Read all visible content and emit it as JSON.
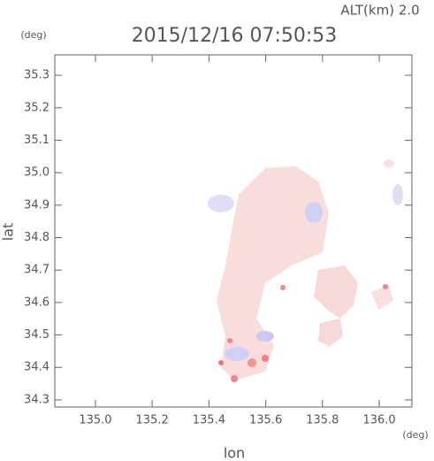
{
  "chart_data": {
    "type": "map",
    "title": "2015/12/16 07:50:53",
    "altitude_label": "ALT(km) 2.0",
    "y_unit": "(deg)",
    "x_unit": "(deg)",
    "xlabel": "lon",
    "ylabel": "lat",
    "xlim": [
      134.857,
      136.115
    ],
    "ylim": [
      34.278,
      35.363
    ],
    "xticks": [
      {
        "value": 135,
        "label": "135.0"
      },
      135.2,
      135.4,
      135.6,
      135.8,
      {
        "value": 136,
        "label": "136.0"
      }
    ],
    "yticks": [
      34.3,
      34.4,
      34.5,
      34.6,
      34.7,
      34.8,
      34.9,
      {
        "value": 35,
        "label": "35.0"
      },
      35.1,
      35.2,
      35.3
    ]
  }
}
